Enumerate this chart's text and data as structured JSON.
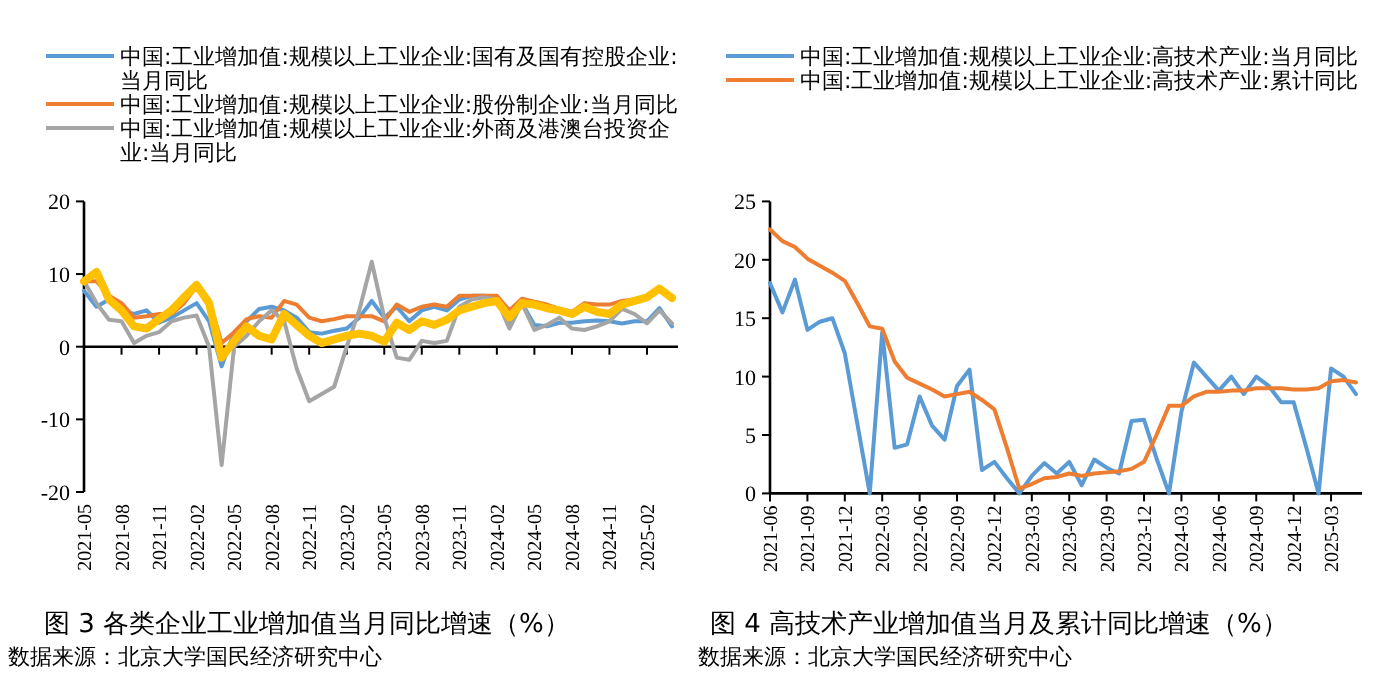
{
  "chart_data": [
    {
      "type": "line",
      "title": "图 3 各类企业工业增加值当月同比增速（%）",
      "annotations": [
        "数据来源：北京大学国民经济研究中心"
      ],
      "legend": "top",
      "ylim": [
        -20,
        20
      ],
      "yticks": [
        -20,
        -10,
        0,
        10,
        20
      ],
      "categories": [
        "2021-05",
        null,
        null,
        "2021-08",
        null,
        null,
        "2021-11",
        null,
        null,
        "2022-02",
        null,
        null,
        "2022-05",
        null,
        null,
        "2022-08",
        null,
        null,
        "2022-11",
        null,
        null,
        "2023-02",
        null,
        null,
        "2023-05",
        null,
        null,
        "2023-08",
        null,
        null,
        "2023-11",
        null,
        null,
        "2024-02",
        null,
        null,
        "2024-05",
        null,
        null,
        "2024-08",
        null,
        null,
        "2024-11",
        null,
        null,
        "2025-02",
        null,
        null
      ],
      "series": [
        {
          "name": "中国:工业增加值:规模以上工业企业:国有及国有控股企业:当月同比",
          "color": "#5b9bd5",
          "values": [
            7.7,
            5.5,
            6.5,
            5,
            4.5,
            5,
            3.3,
            4,
            5,
            6,
            3.5,
            -2.7,
            2,
            3.5,
            5.2,
            5.5,
            5,
            4,
            2,
            1.8,
            2.2,
            2.5,
            4,
            6.3,
            4,
            5.5,
            3.5,
            5,
            5.5,
            5,
            6.5,
            7,
            7,
            6.5,
            3,
            6,
            3,
            2.8,
            3.3,
            3.3,
            3.5,
            3.6,
            3.5,
            3.2,
            3.5,
            3.5,
            5.3,
            2.8
          ]
        },
        {
          "name": "中国:工业增加值:规模以上工业企业:股份制企业:当月同比",
          "color": "#ed7d31",
          "values": [
            9,
            9,
            7,
            6,
            4,
            4.2,
            4.5,
            4.5,
            6,
            8.3,
            6.5,
            0.5,
            2,
            3.8,
            4.2,
            4,
            6.3,
            5.8,
            4,
            3.5,
            3.8,
            4.2,
            4.2,
            4.2,
            3.5,
            5.8,
            4.8,
            5.5,
            5.8,
            5.5,
            7,
            7,
            7,
            7,
            5,
            6.6,
            6.2,
            5.8,
            5.2,
            4.8,
            6,
            5.8,
            5.8,
            6.3,
            6.5,
            6.8,
            null,
            null
          ]
        },
        {
          "name": "中国:工业增加值:规模以上工业企业:外商及港澳台投资企业:当月同比",
          "color": "#a5a5a5",
          "values": [
            9,
            6,
            3.7,
            3.5,
            0.5,
            1.5,
            2,
            3.5,
            4,
            4.3,
            0,
            -16.3,
            0,
            1.5,
            3.5,
            5,
            3.5,
            -3,
            -7.5,
            -6.5,
            -5.5,
            0,
            5,
            11.7,
            4,
            -1.5,
            -1.8,
            0.8,
            0.5,
            0.8,
            5.5,
            6.5,
            6.8,
            6.5,
            2.5,
            6,
            2.3,
            3,
            4,
            2.5,
            2.3,
            2.8,
            3.5,
            5.2,
            4.5,
            3.2,
            5,
            3.2
          ]
        },
        {
          "color": "#ffc000",
          "values": [
            9,
            10.3,
            6.5,
            5,
            2.8,
            2.5,
            3.8,
            5,
            6.8,
            8.5,
            6,
            -1.5,
            0.8,
            2.8,
            1.5,
            1,
            4.5,
            3,
            1.5,
            0.5,
            1,
            1.5,
            1.8,
            1.5,
            0.7,
            3.3,
            2.3,
            3.5,
            3,
            3.7,
            5,
            5.5,
            6,
            6.3,
            4,
            6,
            5.8,
            5.3,
            5,
            4.5,
            5.5,
            4.8,
            4.5,
            5.8,
            6.3,
            6.8,
            8,
            6.7
          ]
        }
      ]
    },
    {
      "type": "line",
      "title": "图 4 高技术产业增加值当月及累计同比增速（%）",
      "annotations": [
        "数据来源：北京大学国民经济研究中心"
      ],
      "legend": "top",
      "ylim": [
        0,
        25
      ],
      "yticks": [
        0,
        5,
        10,
        15,
        20,
        25
      ],
      "categories": [
        "2021-06",
        null,
        null,
        "2021-09",
        null,
        null,
        "2021-12",
        null,
        null,
        "2022-03",
        null,
        null,
        "2022-06",
        null,
        null,
        "2022-09",
        null,
        null,
        "2022-12",
        null,
        null,
        "2023-03",
        null,
        null,
        "2023-06",
        null,
        null,
        "2023-09",
        null,
        null,
        "2023-12",
        null,
        null,
        "2024-03",
        null,
        null,
        "2024-06",
        null,
        null,
        "2024-09",
        null,
        null,
        "2024-12",
        null,
        null,
        "2025-03",
        null,
        null
      ],
      "series": [
        {
          "name": "中国:工业增加值:规模以上工业企业:高技术产业:当月同比",
          "color": "#5b9bd5",
          "values": [
            18,
            15.5,
            18.3,
            14,
            14.7,
            15,
            12,
            6,
            0,
            13.8,
            3.9,
            4.2,
            8.3,
            5.8,
            4.6,
            9.2,
            10.6,
            2,
            2.7,
            1.3,
            0,
            1.5,
            2.6,
            1.7,
            2.7,
            0.7,
            2.9,
            2.2,
            1.7,
            6.2,
            6.3,
            3,
            0,
            7,
            11.2,
            10,
            8.8,
            10,
            8.5,
            10,
            9.2,
            7.8,
            7.8,
            4,
            0,
            10.7,
            10,
            8.5
          ]
        },
        {
          "name": "中国:工业增加值:规模以上工业企业:高技术产业:累计同比",
          "color": "#ed7d31",
          "values": [
            22.6,
            21.6,
            21.1,
            20.1,
            19.5,
            18.9,
            18.2,
            16.3,
            14.3,
            14.1,
            11.3,
            9.9,
            9.4,
            8.9,
            8.3,
            8.5,
            8.7,
            8,
            7.2,
            3.9,
            0.4,
            0.8,
            1.3,
            1.4,
            1.7,
            1.5,
            1.7,
            1.8,
            1.9,
            2.1,
            2.7,
            5,
            7.5,
            7.5,
            8.3,
            8.7,
            8.7,
            8.8,
            8.8,
            9,
            9,
            9,
            8.9,
            8.9,
            9,
            9.6,
            9.7,
            9.5
          ]
        }
      ]
    }
  ]
}
